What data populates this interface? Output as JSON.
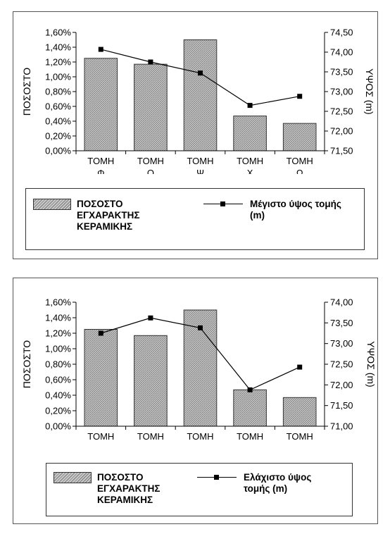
{
  "chart_data": [
    {
      "type": "bar",
      "categories": [
        "ΤΟΜΗ\nΦ",
        "ΤΟΜΗ\nΟ",
        "ΤΟΜΗ\nΨ",
        "ΤΟΜΗ\nΧ",
        "ΤΟΜΗ\nΩ"
      ],
      "ylabel": "ΠΟΣΟΣΤΟ",
      "y2label": "ΥΨΟΣ (m)",
      "ylim": [
        0,
        1.6
      ],
      "y2lim": [
        71.5,
        74.5
      ],
      "yticks": [
        "0,00%",
        "0,20%",
        "0,40%",
        "0,60%",
        "0,80%",
        "1,00%",
        "1,20%",
        "1,40%",
        "1,60%"
      ],
      "y2ticks": [
        "71,50",
        "72,00",
        "72,50",
        "73,00",
        "73,50",
        "74,00",
        "74,50"
      ],
      "series": [
        {
          "name": "ΠΟΣΟΣΤΟ\nΕΓΧΑΡΑΚΤΗΣ\nΚΕΡΑΜΙΚΗΣ",
          "kind": "bar",
          "axis": "left",
          "values": [
            1.25,
            1.17,
            1.5,
            0.47,
            0.37
          ]
        },
        {
          "name": "Μέγιστο ύψος τομής\n(m)",
          "kind": "line",
          "axis": "right",
          "values": [
            74.07,
            73.75,
            73.47,
            72.65,
            72.88
          ]
        }
      ],
      "grid": false,
      "legend": "bottom"
    },
    {
      "type": "bar",
      "categories": [
        "ΤΟΜΗ\nΦ",
        "ΤΟΜΗ\nΟ",
        "ΤΟΜΗ\nΨ",
        "ΤΟΜΗ\nΧ",
        "ΤΟΜΗ\nΩ"
      ],
      "ylabel": "ΠΟΣΟΣΤΟ",
      "y2label": "ΥΨΟΣ (m)",
      "ylim": [
        0,
        1.6
      ],
      "y2lim": [
        71.0,
        74.0
      ],
      "yticks": [
        "0,00%",
        "0,20%",
        "0,40%",
        "0,60%",
        "0,80%",
        "1,00%",
        "1,20%",
        "1,40%",
        "1,60%"
      ],
      "y2ticks": [
        "71,00",
        "71,50",
        "72,00",
        "72,50",
        "73,00",
        "73,50",
        "74,00"
      ],
      "series": [
        {
          "name": "ΠΟΣΟΣΤΟ\nΕΓΧΑΡΑΚΤΗΣ\nΚΕΡΑΜΙΚΗΣ",
          "kind": "bar",
          "axis": "left",
          "values": [
            1.25,
            1.17,
            1.5,
            0.47,
            0.37
          ]
        },
        {
          "name": "Ελάχιστο ύψος\nτομής (m)",
          "kind": "line",
          "axis": "right",
          "values": [
            73.25,
            73.62,
            73.38,
            71.88,
            72.43
          ]
        }
      ],
      "grid": false,
      "legend": "bottom"
    }
  ]
}
